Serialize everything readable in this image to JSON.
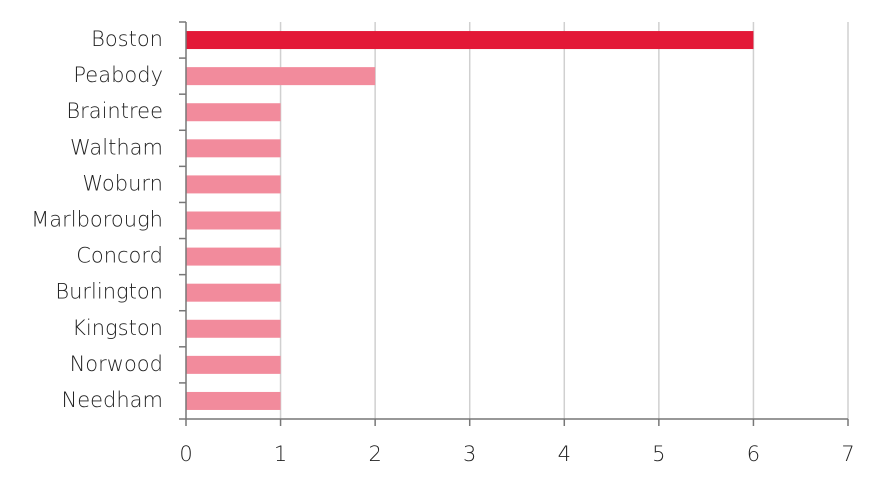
{
  "chart_data": {
    "type": "hbar",
    "categories": [
      "Boston",
      "Peabody",
      "Braintree",
      "Waltham",
      "Woburn",
      "Marlborough",
      "Concord",
      "Burlington",
      "Kingston",
      "Norwood",
      "Needham"
    ],
    "values": [
      6,
      2,
      1,
      1,
      1,
      1,
      1,
      1,
      1,
      1,
      1
    ],
    "colors": [
      "#e31837",
      "#f28b9c",
      "#f28b9c",
      "#f28b9c",
      "#f28b9c",
      "#f28b9c",
      "#f28b9c",
      "#f28b9c",
      "#f28b9c",
      "#f28b9c",
      "#f28b9c"
    ],
    "xlim": [
      0,
      7
    ],
    "xticks": [
      0,
      1,
      2,
      3,
      4,
      5,
      6,
      7
    ],
    "grid": true
  }
}
